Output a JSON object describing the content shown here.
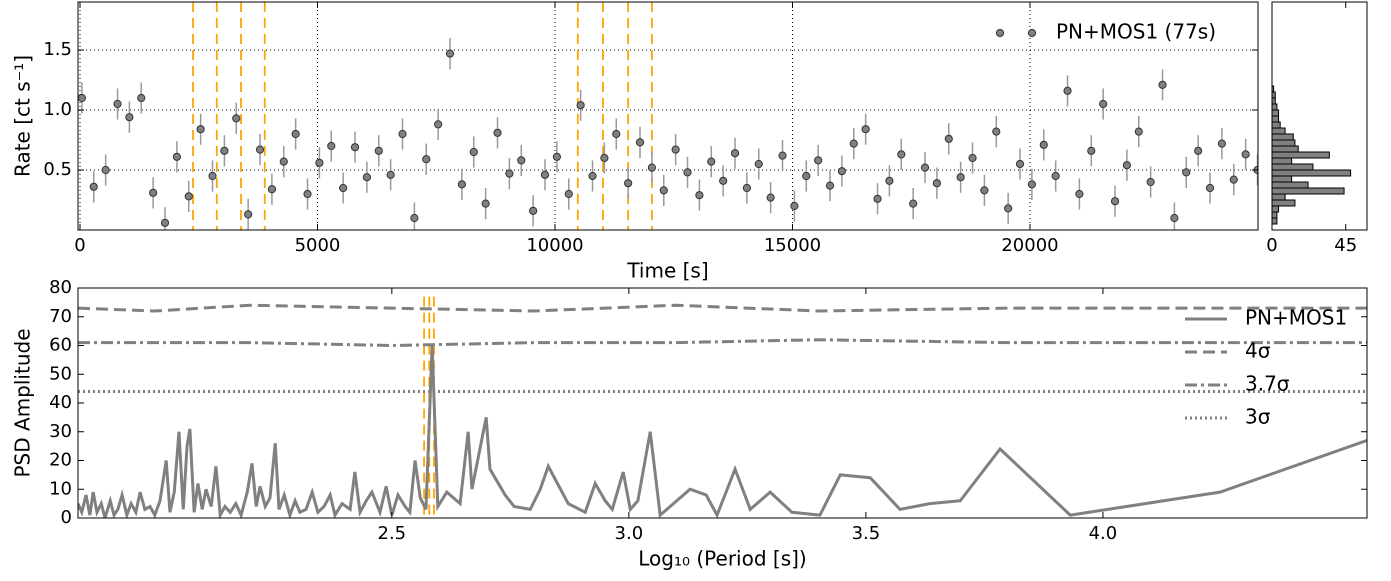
{
  "chart_data": [
    {
      "type": "scatter",
      "xlabel": "Time [s]",
      "ylabel": "Rate [ct s⁻¹]",
      "x": [
        40,
        290,
        540,
        790,
        1040,
        1290,
        1540,
        1790,
        2040,
        2290,
        2540,
        2790,
        3040,
        3290,
        3540,
        3790,
        4040,
        4290,
        4540,
        4790,
        5040,
        5290,
        5540,
        5790,
        6040,
        6290,
        6540,
        6790,
        7040,
        7290,
        7540,
        7790,
        8040,
        8290,
        8540,
        8790,
        9040,
        9290,
        9540,
        9790,
        10040,
        10290,
        10540,
        10790,
        11040,
        11290,
        11540,
        11790,
        12040,
        12290,
        12540,
        12790,
        13040,
        13290,
        13540,
        13790,
        14040,
        14290,
        14540,
        14790,
        15040,
        15290,
        15540,
        15790,
        16040,
        16290,
        16540,
        16790,
        17040,
        17290,
        17540,
        17790,
        18040,
        18290,
        18540,
        18790,
        19040,
        19290,
        19540,
        19790,
        20040,
        20290,
        20540,
        20790,
        21040,
        21290,
        21540,
        21790,
        22040,
        22290,
        22540,
        22790,
        23040,
        23290,
        23540,
        23790,
        24040,
        24290,
        24540,
        24790
      ],
      "series": [
        {
          "name": "PN+MOS1 (77s)",
          "color": "#808080",
          "yerr": 0.13,
          "values": [
            1.1,
            0.36,
            0.5,
            1.05,
            0.94,
            1.1,
            0.31,
            0.06,
            0.61,
            0.28,
            0.84,
            0.45,
            0.66,
            0.93,
            0.13,
            0.67,
            0.34,
            0.57,
            0.8,
            0.3,
            0.56,
            0.7,
            0.35,
            0.69,
            0.44,
            0.66,
            0.46,
            0.8,
            0.1,
            0.59,
            0.88,
            1.47,
            0.38,
            0.65,
            0.22,
            0.81,
            0.47,
            0.58,
            0.16,
            0.46,
            0.61,
            0.3,
            1.04,
            0.45,
            0.6,
            0.8,
            0.39,
            0.73,
            0.52,
            0.33,
            0.67,
            0.48,
            0.29,
            0.57,
            0.41,
            0.64,
            0.35,
            0.55,
            0.27,
            0.62,
            0.2,
            0.45,
            0.58,
            0.37,
            0.49,
            0.72,
            0.84,
            0.26,
            0.41,
            0.63,
            0.22,
            0.52,
            0.39,
            0.76,
            0.44,
            0.6,
            0.33,
            0.82,
            0.18,
            0.55,
            0.38,
            0.71,
            0.45,
            1.16,
            0.3,
            0.66,
            1.05,
            0.24,
            0.54,
            0.82,
            0.4,
            1.21,
            0.1,
            0.48,
            0.66,
            0.35,
            0.72,
            0.42,
            0.63,
            0.5
          ]
        }
      ],
      "xlim": [
        -42,
        24800
      ],
      "ylim": [
        0,
        1.9
      ],
      "xticks": [
        0,
        5000,
        10000,
        15000,
        20000
      ],
      "yticks": [
        0.5,
        {
          "value": 1,
          "label": "1.0"
        },
        1.5
      ],
      "grid": true,
      "legend": "upper right",
      "vlines": [
        2380,
        2880,
        3390,
        3890,
        10480,
        11010,
        11540,
        12040
      ],
      "vline_color": "#ffa500"
    },
    {
      "type": "histogram",
      "orientation": "horizontal",
      "color": "#808080",
      "bins": [
        0.05,
        0.1,
        0.15,
        0.2,
        0.25,
        0.3,
        0.35,
        0.4,
        0.45,
        0.5,
        0.55,
        0.6,
        0.65,
        0.7,
        0.75,
        0.8,
        0.85,
        0.9,
        0.95,
        1.0,
        1.05,
        1.1,
        1.15,
        1.2
      ],
      "counts": [
        3,
        3,
        4,
        14,
        8,
        44,
        22,
        12,
        48,
        25,
        12,
        35,
        16,
        14,
        13,
        8,
        5,
        4,
        4,
        3,
        2,
        2,
        1
      ],
      "xlim": [
        0,
        58
      ],
      "xticks": [
        0,
        45
      ],
      "ylim": [
        0,
        1.9
      ]
    },
    {
      "type": "line",
      "xlabel": "Log₁₀ (Period [s])",
      "ylabel": "PSD Amplitude",
      "series": [
        {
          "name": "PN+MOS1",
          "color": "#808080",
          "style": "solid",
          "x": [
            1.838,
            1.846,
            1.855,
            1.863,
            1.87,
            1.878,
            1.887,
            1.895,
            1.906,
            1.914,
            1.922,
            1.931,
            1.941,
            1.95,
            1.96,
            1.969,
            1.979,
            1.99,
            2.0,
            2.011,
            2.024,
            2.032,
            2.041,
            2.051,
            2.06,
            2.068,
            2.074,
            2.083,
            2.091,
            2.1,
            2.108,
            2.119,
            2.129,
            2.138,
            2.148,
            2.159,
            2.171,
            2.182,
            2.195,
            2.205,
            2.214,
            2.222,
            2.233,
            2.243,
            2.254,
            2.262,
            2.273,
            2.285,
            2.296,
            2.306,
            2.319,
            2.332,
            2.344,
            2.357,
            2.37,
            2.38,
            2.395,
            2.412,
            2.422,
            2.433,
            2.446,
            2.458,
            2.475,
            2.488,
            2.5,
            2.513,
            2.528,
            2.538,
            2.549,
            2.56,
            2.572,
            2.585,
            2.597,
            2.616,
            2.644,
            2.661,
            2.669,
            2.699,
            2.707,
            2.739,
            2.758,
            2.792,
            2.813,
            2.83,
            2.872,
            2.908,
            2.929,
            2.95,
            2.965,
            2.988,
            3.003,
            3.019,
            3.045,
            3.066,
            3.087,
            3.129,
            3.163,
            3.186,
            3.224,
            3.256,
            3.298,
            3.344,
            3.403,
            3.446,
            3.509,
            3.572,
            3.635,
            3.699,
            3.783,
            3.931,
            4.247,
            4.557
          ],
          "values": [
            5,
            2,
            8,
            1,
            9,
            2,
            5,
            0,
            6,
            1,
            3,
            8,
            1,
            5,
            2,
            9,
            3,
            4,
            1,
            6,
            20,
            2,
            9,
            30,
            3,
            25,
            31,
            2,
            12,
            3,
            10,
            4,
            18,
            1,
            4,
            2,
            5,
            1,
            9,
            19,
            4,
            11,
            4,
            7,
            26,
            3,
            8,
            1,
            6,
            2,
            3,
            9,
            2,
            4,
            8,
            1,
            5,
            3,
            16,
            2,
            6,
            9,
            2,
            11,
            1,
            8,
            4,
            2,
            20,
            7,
            3,
            60,
            4,
            9,
            5,
            30,
            10,
            35,
            17,
            8,
            4,
            3,
            10,
            18,
            5,
            2,
            12,
            6,
            3,
            16,
            3,
            6,
            30,
            1,
            4,
            10,
            8,
            1,
            17,
            3,
            9,
            2,
            1,
            15,
            14,
            3,
            5,
            6,
            24,
            1,
            9,
            27
          ]
        },
        {
          "name": "4σ",
          "color": "#808080",
          "style": "dashed",
          "x": [
            1.838,
            2.0,
            2.2,
            2.5,
            2.8,
            3.1,
            3.4,
            3.8,
            4.2,
            4.557
          ],
          "values": [
            73,
            72,
            74,
            73,
            72,
            74,
            72,
            73,
            73,
            73
          ]
        },
        {
          "name": "3.7σ",
          "color": "#808080",
          "style": "dashdot",
          "x": [
            1.838,
            2.0,
            2.2,
            2.5,
            2.8,
            3.1,
            3.4,
            3.8,
            4.2,
            4.557
          ],
          "values": [
            61,
            61,
            61,
            60,
            61,
            61,
            62,
            61,
            61,
            61
          ]
        },
        {
          "name": "3σ",
          "color": "#808080",
          "style": "dotted",
          "x": [
            1.838,
            2.0,
            2.2,
            2.5,
            2.8,
            3.1,
            3.4,
            3.8,
            4.2,
            4.557
          ],
          "values": [
            44,
            44,
            44,
            44,
            44,
            44,
            44,
            44,
            44,
            44
          ]
        }
      ],
      "xlim": [
        1.838,
        4.557
      ],
      "ylim": [
        0,
        80
      ],
      "xticks": [
        2.5,
        {
          "value": 3,
          "label": "3.0"
        },
        3.5,
        {
          "value": 4,
          "label": "4.0"
        }
      ],
      "yticks": [
        0,
        10,
        20,
        30,
        40,
        50,
        60,
        70,
        80
      ],
      "grid": false,
      "legend": "right",
      "vlines": [
        2.568,
        2.579,
        2.589
      ],
      "vline_color": "#ffa500"
    }
  ]
}
